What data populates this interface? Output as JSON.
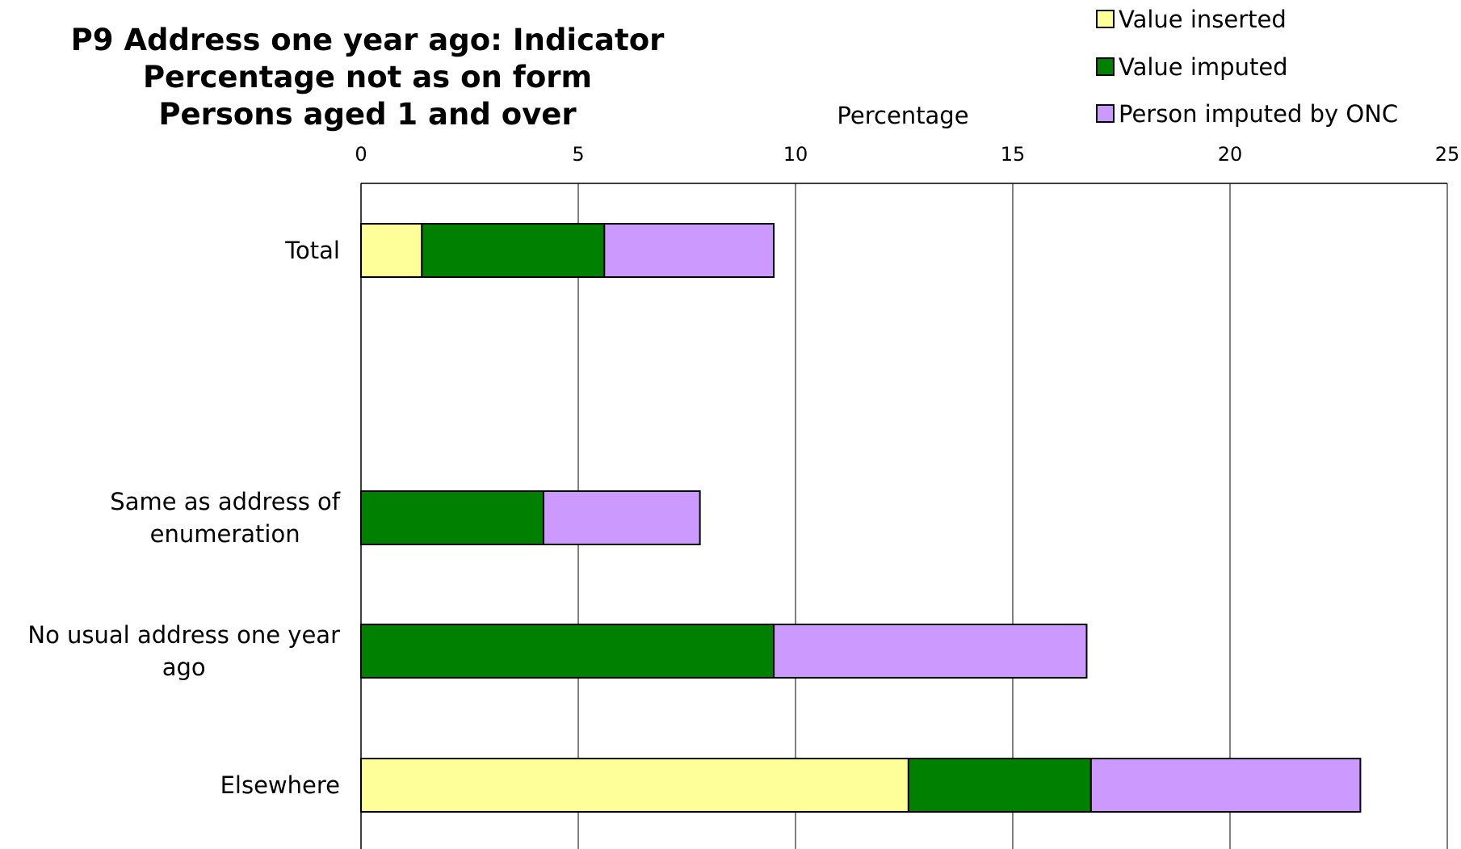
{
  "chart_data": {
    "type": "bar",
    "orientation": "horizontal",
    "stacked": true,
    "title": "P9 Address one year ago: Indicator",
    "subtitle_lines": [
      "Percentage not as on form",
      "Persons aged 1 and over"
    ],
    "xlabel": "Percentage",
    "ylabel": "",
    "xlim": [
      0,
      25
    ],
    "x_ticks": [
      0,
      5,
      10,
      15,
      20,
      25
    ],
    "grid": true,
    "legend_position": "top-right",
    "categories": [
      {
        "lines": [
          "Total"
        ]
      },
      {
        "lines": [
          "Same as address of",
          "enumeration"
        ]
      },
      {
        "lines": [
          "No usual address one year",
          "ago"
        ]
      },
      {
        "lines": [
          "Elsewhere"
        ]
      }
    ],
    "category_names": [
      "Total",
      "Same as address of enumeration",
      "No usual address one year ago",
      "Elsewhere"
    ],
    "series": [
      {
        "name": "Value inserted",
        "color": "#ffff99",
        "values": [
          1.4,
          0,
          0,
          12.6
        ]
      },
      {
        "name": "Value imputed",
        "color": "#008000",
        "values": [
          4.2,
          4.2,
          9.5,
          4.2
        ]
      },
      {
        "name": "Person imputed by ONC",
        "color": "#cc99ff",
        "values": [
          3.9,
          3.6,
          7.2,
          6.2
        ]
      }
    ]
  }
}
